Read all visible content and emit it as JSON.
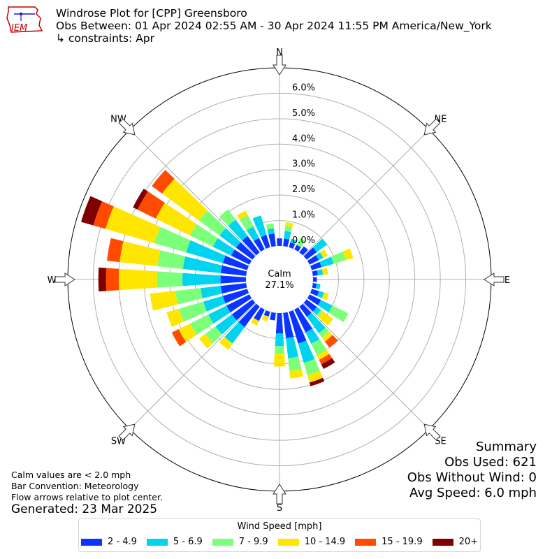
{
  "header": {
    "title_line1": "Windrose Plot for [CPP] Greensboro",
    "title_line2": "Obs Between: 01 Apr 2024 02:55 AM - 30 Apr 2024 11:55 PM America/New_York",
    "title_line3": "↳ constraints: Apr",
    "logo_text": "IEM"
  },
  "notes": {
    "line1": "Calm values are < 2.0 mph",
    "line2": "Bar Convention: Meteorology",
    "line3": "Flow arrows relative to plot center.",
    "generated": "Generated: 23 Mar 2025"
  },
  "summary": {
    "heading": "Summary",
    "obs_used": "Obs Used: 621",
    "obs_without_wind": "Obs Without Wind: 0",
    "avg_speed": "Avg Speed: 6.0 mph"
  },
  "calm": {
    "label": "Calm",
    "value": "27.1%"
  },
  "compass": [
    "N",
    "NE",
    "E",
    "SE",
    "S",
    "SW",
    "W",
    "NW"
  ],
  "chart_data": {
    "type": "windrose",
    "units": "%",
    "rmax": 7.0,
    "calm_percent": 27.1,
    "radial_ticks": [
      {
        "value": 0,
        "label": "0.0%"
      },
      {
        "value": 1,
        "label": "1.0%"
      },
      {
        "value": 2,
        "label": "2.0%"
      },
      {
        "value": 3,
        "label": "3.0%"
      },
      {
        "value": 4,
        "label": "4.0%"
      },
      {
        "value": 5,
        "label": "5.0%"
      },
      {
        "value": 6,
        "label": "6.0%"
      }
    ],
    "legend_title": "Wind Speed [mph]",
    "bins": [
      {
        "label": "2 - 4.9",
        "color": "#0a34ff"
      },
      {
        "label": "5 - 6.9",
        "color": "#00d4ef"
      },
      {
        "label": "7 - 9.9",
        "color": "#7cff79"
      },
      {
        "label": "10 - 14.9",
        "color": "#ffe600"
      },
      {
        "label": "15 - 19.9",
        "color": "#ff4a00"
      },
      {
        "label": "20+",
        "color": "#7f0000"
      }
    ],
    "directions_deg": [
      0,
      10,
      20,
      30,
      40,
      50,
      60,
      70,
      80,
      90,
      100,
      110,
      120,
      130,
      140,
      150,
      160,
      170,
      180,
      190,
      200,
      210,
      220,
      230,
      240,
      250,
      260,
      270,
      280,
      290,
      300,
      310,
      320,
      330,
      340,
      350
    ],
    "series": [
      [
        0.3,
        0.0,
        0.0,
        0.0,
        0.0,
        0.0
      ],
      [
        0.3,
        0.3,
        0.2,
        0.15,
        0.0,
        0.0
      ],
      [
        0.2,
        0.15,
        0.0,
        0.0,
        0.0,
        0.0
      ],
      [
        0.2,
        0.0,
        0.3,
        0.0,
        0.0,
        0.0
      ],
      [
        0.3,
        0.0,
        0.0,
        0.0,
        0.0,
        0.0
      ],
      [
        0.5,
        0.5,
        0.0,
        0.0,
        0.0,
        0.0
      ],
      [
        0.4,
        0.2,
        0.0,
        0.2,
        0.0,
        0.0
      ],
      [
        0.4,
        0.5,
        0.5,
        0.3,
        0.0,
        0.0
      ],
      [
        0.2,
        0.2,
        0.0,
        0.2,
        0.0,
        0.0
      ],
      [
        0.15,
        0.0,
        0.0,
        0.0,
        0.0,
        0.0
      ],
      [
        0.15,
        0.15,
        0.0,
        0.0,
        0.0,
        0.0
      ],
      [
        0.3,
        0.2,
        0.0,
        0.2,
        0.0,
        0.0
      ],
      [
        0.5,
        0.5,
        0.7,
        0.0,
        0.0,
        0.0
      ],
      [
        0.5,
        0.2,
        0.1,
        0.5,
        0.0,
        0.0
      ],
      [
        0.5,
        0.8,
        0.2,
        0.2,
        0.3,
        0.0
      ],
      [
        1.0,
        0.5,
        0.5,
        0.2,
        0.2,
        0.2
      ],
      [
        1.3,
        0.8,
        0.5,
        0.3,
        0.0,
        0.15
      ],
      [
        1.0,
        0.8,
        0.5,
        0.3,
        0.0,
        0.0
      ],
      [
        0.8,
        0.5,
        0.3,
        0.5,
        0.0,
        0.0
      ],
      [
        0.3,
        0.0,
        0.0,
        0.0,
        0.0,
        0.0
      ],
      [
        0.2,
        0.0,
        0.0,
        0.2,
        0.0,
        0.0
      ],
      [
        0.5,
        0.0,
        0.0,
        0.2,
        0.0,
        0.0
      ],
      [
        1.0,
        0.8,
        0.0,
        0.3,
        0.0,
        0.0
      ],
      [
        1.0,
        0.8,
        0.5,
        0.3,
        0.0,
        0.0
      ],
      [
        1.0,
        0.8,
        0.8,
        0.5,
        0.3,
        0.0
      ],
      [
        1.0,
        0.8,
        1.0,
        0.5,
        0.0,
        0.0
      ],
      [
        1.0,
        0.8,
        1.0,
        1.0,
        0.0,
        0.0
      ],
      [
        1.0,
        1.5,
        1.0,
        1.5,
        0.5,
        0.3
      ],
      [
        1.0,
        1.5,
        1.0,
        1.5,
        0.5,
        0.0
      ],
      [
        1.0,
        1.5,
        1.3,
        2.0,
        0.5,
        0.5
      ],
      [
        0.8,
        0.8,
        1.0,
        1.5,
        0.8,
        0.2
      ],
      [
        0.8,
        0.8,
        1.0,
        1.8,
        0.5,
        0.0
      ],
      [
        0.8,
        0.8,
        0.5,
        0.0,
        0.0,
        0.0
      ],
      [
        0.5,
        0.5,
        0.5,
        0.2,
        0.0,
        0.0
      ],
      [
        0.5,
        0.8,
        0.0,
        0.0,
        0.0,
        0.0
      ],
      [
        0.5,
        0.2,
        0.2,
        0.0,
        0.0,
        0.0
      ]
    ]
  }
}
